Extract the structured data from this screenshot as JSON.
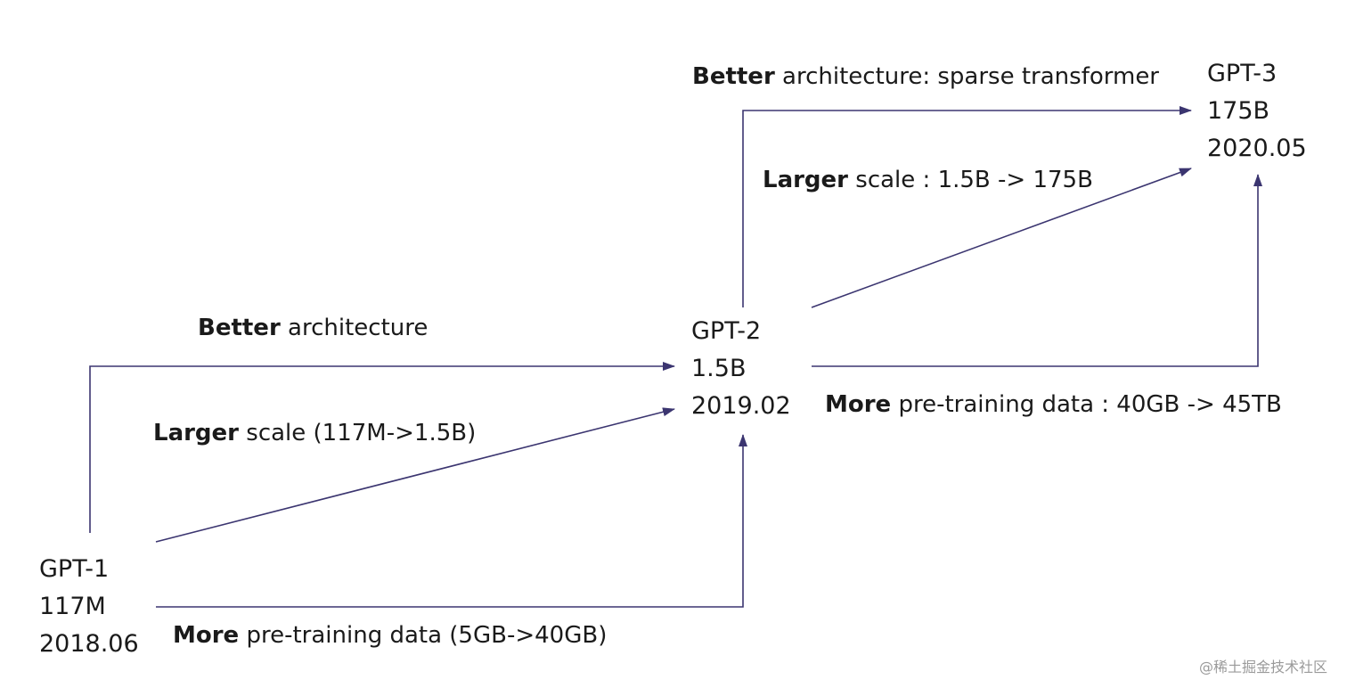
{
  "nodes": {
    "gpt1": {
      "name": "GPT-1",
      "params": "117M",
      "date": "2018.06"
    },
    "gpt2": {
      "name": "GPT-2",
      "params": "1.5B",
      "date": "2019.02"
    },
    "gpt3": {
      "name": "GPT-3",
      "params": "175B",
      "date": "2020.05"
    }
  },
  "edges": {
    "g1_arch": {
      "bold": "Better",
      "text": " architecture"
    },
    "g1_scale": {
      "bold": "Larger",
      "text": " scale (117M->1.5B)"
    },
    "g1_data": {
      "bold": "More",
      "text": " pre-training data  (5GB->40GB)"
    },
    "g2_arch": {
      "bold": "Better",
      "text": " architecture: sparse transformer"
    },
    "g2_scale": {
      "bold": "Larger",
      "text": " scale : 1.5B -> 175B"
    },
    "g2_data": {
      "bold": "More",
      "text": " pre-training data : 40GB -> 45TB"
    }
  },
  "watermark": "@稀土掘金技术社区",
  "colors": {
    "arrow": "#3b3570",
    "text": "#1a1a1a"
  }
}
